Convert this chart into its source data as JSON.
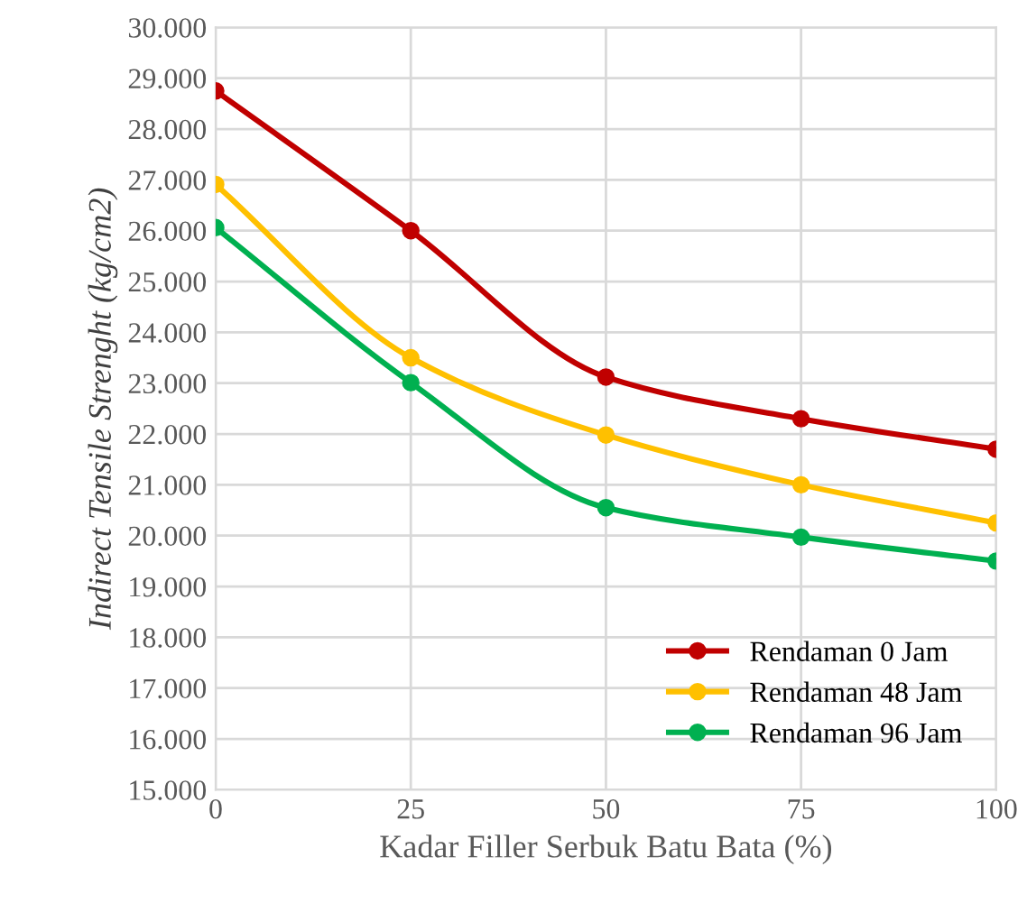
{
  "chart_data": {
    "type": "line",
    "xlabel": "Kadar Filler Serbuk Batu Bata (%)",
    "ylabel": "Indirect Tensile Strenght (kg/cm2)",
    "x": [
      0,
      25,
      50,
      75,
      100
    ],
    "series": [
      {
        "name": "Rendaman 0 Jam",
        "color": "#c00000",
        "values": [
          28750,
          26000,
          23120,
          22300,
          21700
        ]
      },
      {
        "name": "Rendaman 48 Jam",
        "color": "#ffc000",
        "values": [
          26910,
          23500,
          21980,
          21000,
          20250
        ]
      },
      {
        "name": "Rendaman 96 Jam",
        "color": "#00b050",
        "values": [
          26060,
          23010,
          20550,
          19970,
          19500
        ]
      }
    ],
    "xlim": [
      0,
      100
    ],
    "xticks": [
      0,
      25,
      50,
      75,
      100
    ],
    "ylim": [
      15000,
      30000
    ],
    "yticks": [
      {
        "value": 15000,
        "label": "15.000"
      },
      {
        "value": 16000,
        "label": "16.000"
      },
      {
        "value": 17000,
        "label": "17.000"
      },
      {
        "value": 18000,
        "label": "18.000"
      },
      {
        "value": 19000,
        "label": "19.000"
      },
      {
        "value": 20000,
        "label": "20.000"
      },
      {
        "value": 21000,
        "label": "21.000"
      },
      {
        "value": 22000,
        "label": "22.000"
      },
      {
        "value": 23000,
        "label": "23.000"
      },
      {
        "value": 24000,
        "label": "24.000"
      },
      {
        "value": 25000,
        "label": "25.000"
      },
      {
        "value": 26000,
        "label": "26.000"
      },
      {
        "value": 27000,
        "label": "27.000"
      },
      {
        "value": 28000,
        "label": "28.000"
      },
      {
        "value": 29000,
        "label": "29.000"
      },
      {
        "value": 30000,
        "label": "30.000"
      }
    ],
    "grid": true,
    "legend": "bottom right",
    "marker": "circle",
    "line_style": "solid"
  }
}
